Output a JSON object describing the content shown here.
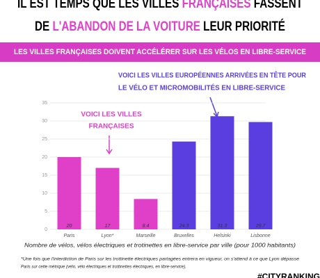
{
  "header": {
    "title_line_1": [
      "IL EST TEMPS QUE LES VILLES ",
      "FRANÇAISES",
      " FASSENT"
    ],
    "title_line_2": [
      "DE ",
      "L'ABANDON DE LA VOITURE",
      " LEUR PRIORITÉ"
    ],
    "banner": "LES VILLES FRANÇAISES DOIVENT ACCÉLÉRER SUR LES VÉLOS EN LIBRE-SERVICE"
  },
  "chart_data": {
    "type": "bar",
    "categories": [
      "Paris",
      "Lyon*",
      "Marseille",
      "Bruxelles",
      "Helsinki",
      "Lisbonne"
    ],
    "values": [
      20,
      17,
      8.4,
      24.3,
      31.3,
      29.7
    ],
    "colors": [
      "#e040c8",
      "#e040c8",
      "#e040c8",
      "#5a3ee0",
      "#5a3ee0",
      "#5a3ee0"
    ],
    "ylim": [
      0,
      35
    ],
    "yticks": [
      0,
      5,
      10,
      15,
      20,
      25,
      30,
      35
    ],
    "grid": true,
    "x_label": "Nombre de vélos, vélos électriques et trotinettes en libre-service par ville (pour 1000 habitants)",
    "annotations": [
      "VOICI LES VILLES",
      "FRANÇAISES",
      "VOICI LES VILLES EUROPÉENNES ARRIVÉES EN TÊTE POUR",
      "LE VÉLO ET MICROMOBILITÉS EN LIBRE-SERVICE"
    ]
  },
  "footnote": [
    "*Une fois que l'interdiction de Paris sur les trottinette  électriques partagées entrera en vigueur, on s'attend à ce que Lyon dépasse",
    "Paris sur cette métrique (vélo, vélo électriques et trottinettes électriques, en libre-service)."
  ],
  "hashtag": "#CITYRANKING"
}
